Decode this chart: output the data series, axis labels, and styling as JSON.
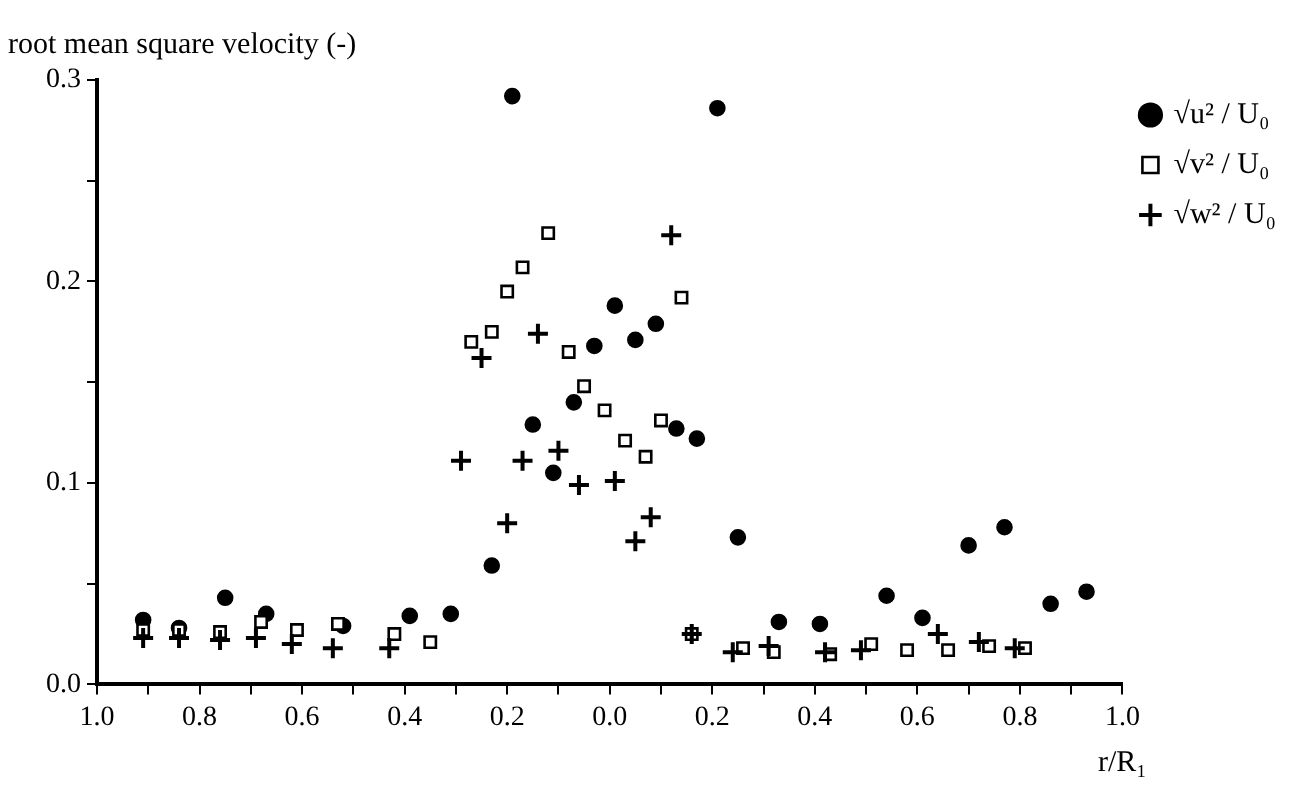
{
  "chart_data": {
    "type": "scatter",
    "xlabel": "r/R₁",
    "ylabel": "root mean square velocity (-)",
    "xlim": [
      -1,
      1
    ],
    "xticks": [
      {
        "value": -1,
        "label": "1.0"
      },
      {
        "value": -0.9,
        "label": null
      },
      {
        "value": -0.8,
        "label": "0.8"
      },
      {
        "value": -0.7,
        "label": null
      },
      {
        "value": -0.6,
        "label": "0.6"
      },
      {
        "value": -0.5,
        "label": null
      },
      {
        "value": -0.4,
        "label": "0.4"
      },
      {
        "value": -0.3,
        "label": null
      },
      {
        "value": -0.2,
        "label": "0.2"
      },
      {
        "value": -0.1,
        "label": null
      },
      {
        "value": 0,
        "label": "0.0"
      },
      {
        "value": 0.1,
        "label": null
      },
      {
        "value": 0.2,
        "label": "0.2"
      },
      {
        "value": 0.3,
        "label": null
      },
      {
        "value": 0.4,
        "label": "0.4"
      },
      {
        "value": 0.5,
        "label": null
      },
      {
        "value": 0.6,
        "label": "0.6"
      },
      {
        "value": 0.7,
        "label": null
      },
      {
        "value": 0.8,
        "label": "0.8"
      },
      {
        "value": 0.9,
        "label": null
      },
      {
        "value": 1,
        "label": "1.0"
      }
    ],
    "ylim": [
      0,
      0.3
    ],
    "yticks": [
      {
        "value": 0,
        "label": "0.0"
      },
      {
        "value": 0.05,
        "label": null
      },
      {
        "value": 0.1,
        "label": "0.1"
      },
      {
        "value": 0.15,
        "label": null
      },
      {
        "value": 0.2,
        "label": "0.2"
      },
      {
        "value": 0.25,
        "label": null
      },
      {
        "value": 0.3,
        "label": "0.3"
      }
    ],
    "grid": false,
    "legend": "top right",
    "series": [
      {
        "name": "√u² / U₀",
        "color": "#000000",
        "marker": "circle",
        "x": [
          -0.91,
          -0.84,
          -0.75,
          -0.67,
          -0.52,
          -0.39,
          -0.31,
          -0.23,
          -0.19,
          -0.15,
          -0.11,
          -0.07,
          -0.03,
          0.01,
          0.05,
          0.09,
          0.13,
          0.17,
          0.21,
          0.25,
          0.33,
          0.41,
          0.54,
          0.61,
          0.7,
          0.77,
          0.86,
          0.93
        ],
        "values": [
          0.032,
          0.028,
          0.043,
          0.035,
          0.029,
          0.034,
          0.035,
          0.059,
          0.292,
          0.129,
          0.105,
          0.14,
          0.168,
          0.188,
          0.171,
          0.179,
          0.127,
          0.122,
          0.286,
          0.073,
          0.031,
          0.03,
          0.044,
          0.033,
          0.069,
          0.078,
          0.04,
          0.046
        ]
      },
      {
        "name": "√v² / U₀",
        "color": "#000000",
        "marker": "square",
        "x": [
          -0.91,
          -0.84,
          -0.76,
          -0.68,
          -0.61,
          -0.53,
          -0.42,
          -0.35,
          -0.27,
          -0.23,
          -0.2,
          -0.17,
          -0.12,
          -0.08,
          -0.05,
          -0.01,
          0.03,
          0.07,
          0.1,
          0.14,
          0.16,
          0.26,
          0.32,
          0.43,
          0.51,
          0.58,
          0.66,
          0.74,
          0.81
        ],
        "values": [
          0.027,
          0.027,
          0.026,
          0.031,
          0.027,
          0.03,
          0.025,
          0.021,
          0.17,
          0.175,
          0.195,
          0.207,
          0.224,
          0.165,
          0.148,
          0.136,
          0.121,
          0.113,
          0.131,
          0.192,
          0.025,
          0.018,
          0.016,
          0.015,
          0.02,
          0.017,
          0.017,
          0.019,
          0.018
        ]
      },
      {
        "name": "√w² / U₀",
        "color": "#000000",
        "marker": "cross",
        "x": [
          -0.91,
          -0.84,
          -0.76,
          -0.69,
          -0.62,
          -0.54,
          -0.43,
          -0.29,
          -0.25,
          -0.2,
          -0.17,
          -0.14,
          -0.1,
          -0.06,
          0.01,
          0.05,
          0.08,
          0.12,
          0.16,
          0.24,
          0.31,
          0.42,
          0.49,
          0.64,
          0.72,
          0.79
        ],
        "values": [
          0.023,
          0.023,
          0.022,
          0.023,
          0.02,
          0.018,
          0.018,
          0.111,
          0.162,
          0.08,
          0.111,
          0.174,
          0.116,
          0.099,
          0.101,
          0.071,
          0.083,
          0.223,
          0.025,
          0.016,
          0.019,
          0.016,
          0.017,
          0.025,
          0.021,
          0.018
        ]
      }
    ]
  }
}
